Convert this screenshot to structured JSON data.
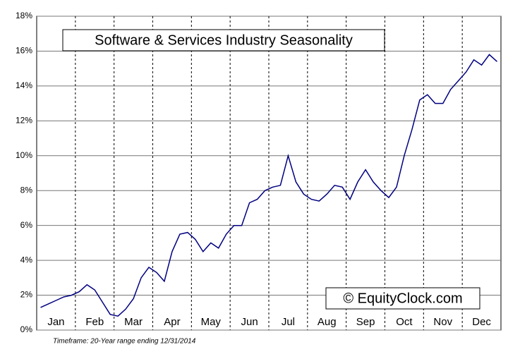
{
  "chart_data": {
    "type": "line",
    "title": "Software & Services Industry Seasonality",
    "watermark": "© EquityClock.com",
    "footnote": "Timeframe: 20-Year range ending 12/31/2014",
    "categories": [
      null,
      null,
      "Jan",
      null,
      null,
      null,
      null,
      "Feb",
      null,
      null,
      null,
      null,
      "Mar",
      null,
      null,
      null,
      null,
      "Apr",
      null,
      null,
      null,
      null,
      "May",
      null,
      null,
      null,
      null,
      "Jun",
      null,
      null,
      null,
      null,
      "Jul",
      null,
      null,
      null,
      null,
      "Aug",
      null,
      null,
      null,
      null,
      "Sep",
      null,
      null,
      null,
      null,
      "Oct",
      null,
      null,
      null,
      null,
      "Nov",
      null,
      null,
      null,
      null,
      "Dec",
      null,
      null
    ],
    "series": [
      {
        "name": "Seasonality",
        "color": "#000080",
        "values": [
          1.3,
          1.5,
          1.7,
          1.9,
          2.0,
          2.2,
          2.6,
          2.3,
          1.6,
          0.9,
          0.8,
          1.2,
          1.8,
          3.0,
          3.6,
          3.3,
          2.8,
          4.5,
          5.5,
          5.6,
          5.2,
          4.5,
          5.0,
          4.7,
          5.5,
          6.0,
          6.0,
          7.3,
          7.5,
          8.0,
          8.2,
          8.3,
          10.0,
          8.5,
          7.8,
          7.5,
          7.4,
          7.8,
          8.3,
          8.2,
          7.5,
          8.5,
          9.2,
          8.5,
          8.0,
          7.6,
          8.2,
          10.0,
          11.5,
          13.2,
          13.5,
          13.0,
          13.0,
          13.8,
          14.3,
          14.8,
          15.5,
          15.2,
          15.8,
          15.4
        ]
      }
    ],
    "ylim": [
      0,
      18
    ],
    "yticks": [
      {
        "value": 0,
        "label": "0%"
      },
      {
        "value": 2,
        "label": "2%"
      },
      {
        "value": 4,
        "label": "4%"
      },
      {
        "value": 6,
        "label": "6%"
      },
      {
        "value": 8,
        "label": "8%"
      },
      {
        "value": 10,
        "label": "10%"
      },
      {
        "value": 12,
        "label": "12%"
      },
      {
        "value": 14,
        "label": "14%"
      },
      {
        "value": 16,
        "label": "16%"
      },
      {
        "value": 18,
        "label": "18%"
      }
    ],
    "grid": true
  }
}
